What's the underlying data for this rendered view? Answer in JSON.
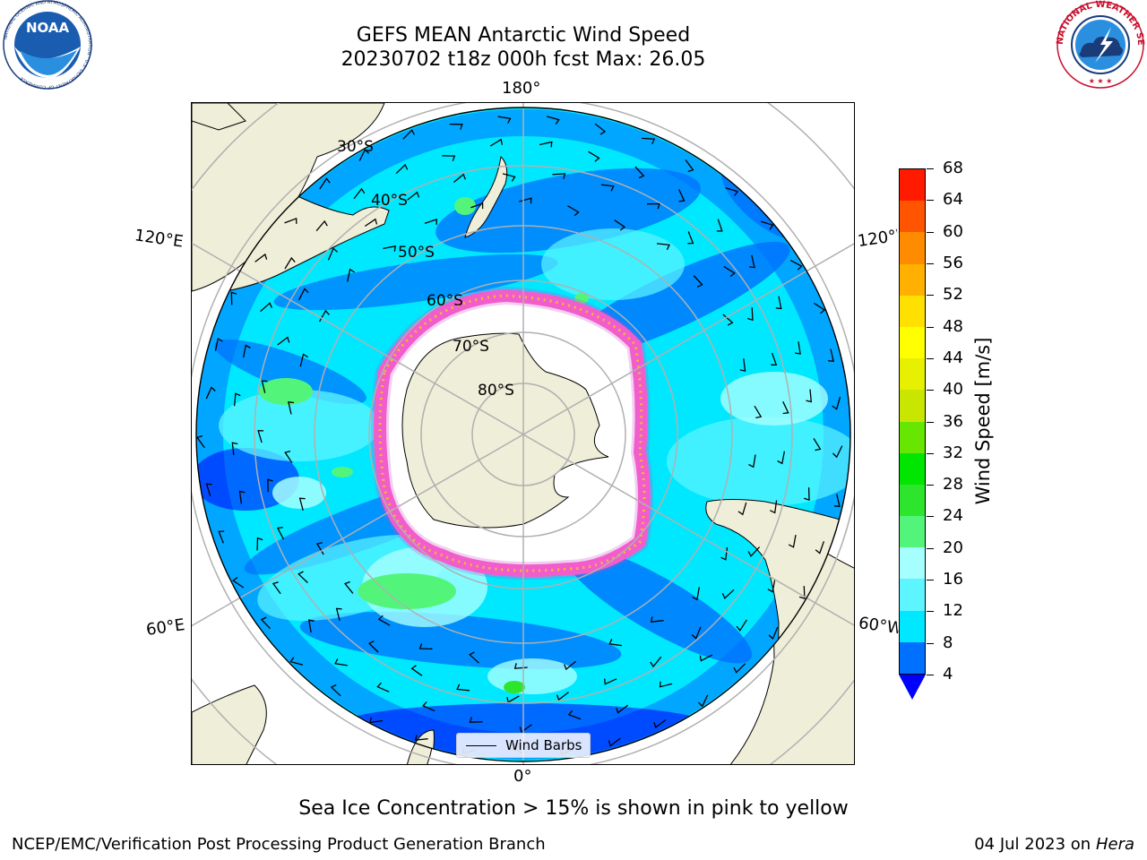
{
  "header": {
    "title_line1": "GEFS MEAN Antarctic Wind Speed",
    "title_line2": "20230702 t18z 000h fcst   Max: 26.05"
  },
  "map": {
    "projection": "south-polar-stereographic",
    "longitude_labels": {
      "top": "180°",
      "bottom": "0°",
      "upper_left": "120°E",
      "upper_right": "120°W",
      "lower_left": "60°E",
      "lower_right": "60°W"
    },
    "latitude_labels": [
      "30°S",
      "40°S",
      "50°S",
      "60°S",
      "70°S",
      "80°S"
    ],
    "legend_label": "Wind Barbs",
    "colors": {
      "land": "#efeed9",
      "gridline": "#b0b0b0",
      "coastline": "#000000",
      "sea_ice_low": "#ff66cc",
      "sea_ice_high": "#ffe000"
    }
  },
  "colorbar": {
    "title": "Wind Speed [m/s]",
    "ticks": [
      "4",
      "8",
      "12",
      "16",
      "20",
      "24",
      "28",
      "32",
      "36",
      "40",
      "44",
      "48",
      "52",
      "56",
      "60",
      "64",
      "68"
    ],
    "colors": [
      "#0070ff",
      "#00e8ff",
      "#5df5ff",
      "#a6ffff",
      "#52f57a",
      "#2ee52e",
      "#00e600",
      "#66e600",
      "#c8e600",
      "#e6f000",
      "#ffff00",
      "#ffe000",
      "#ffb000",
      "#ff8c00",
      "#ff5500",
      "#ff1a00"
    ],
    "under_color": "#0000ff"
  },
  "chart_data": {
    "type": "heatmap",
    "title": "GEFS MEAN Antarctic Wind Speed",
    "subtitle": "20230702 t18z 000h fcst   Max: 26.05",
    "colorbar_label": "Wind Speed [m/s]",
    "colorbar_range": [
      4,
      68
    ],
    "colorbar_step": 4,
    "max_value": 26.05,
    "overlays": [
      "Wind Barbs",
      "Sea Ice Concentration > 15%"
    ]
  },
  "subtitle": "Sea Ice Concentration > 15% is shown in pink to yellow",
  "footer": {
    "left": "NCEP/EMC/Verification Post Processing Product Generation Branch",
    "right_date": "04 Jul 2023 on ",
    "right_machine": "Hera"
  },
  "logos": {
    "noaa_text": "NOAA",
    "noaa_ring_text": "NATIONAL OCEANIC AND ATMOSPHERIC ADMINISTRATION · U.S. DEPARTMENT OF COMMERCE",
    "nws_ring_text": "NATIONAL WEATHER SERVICE"
  }
}
